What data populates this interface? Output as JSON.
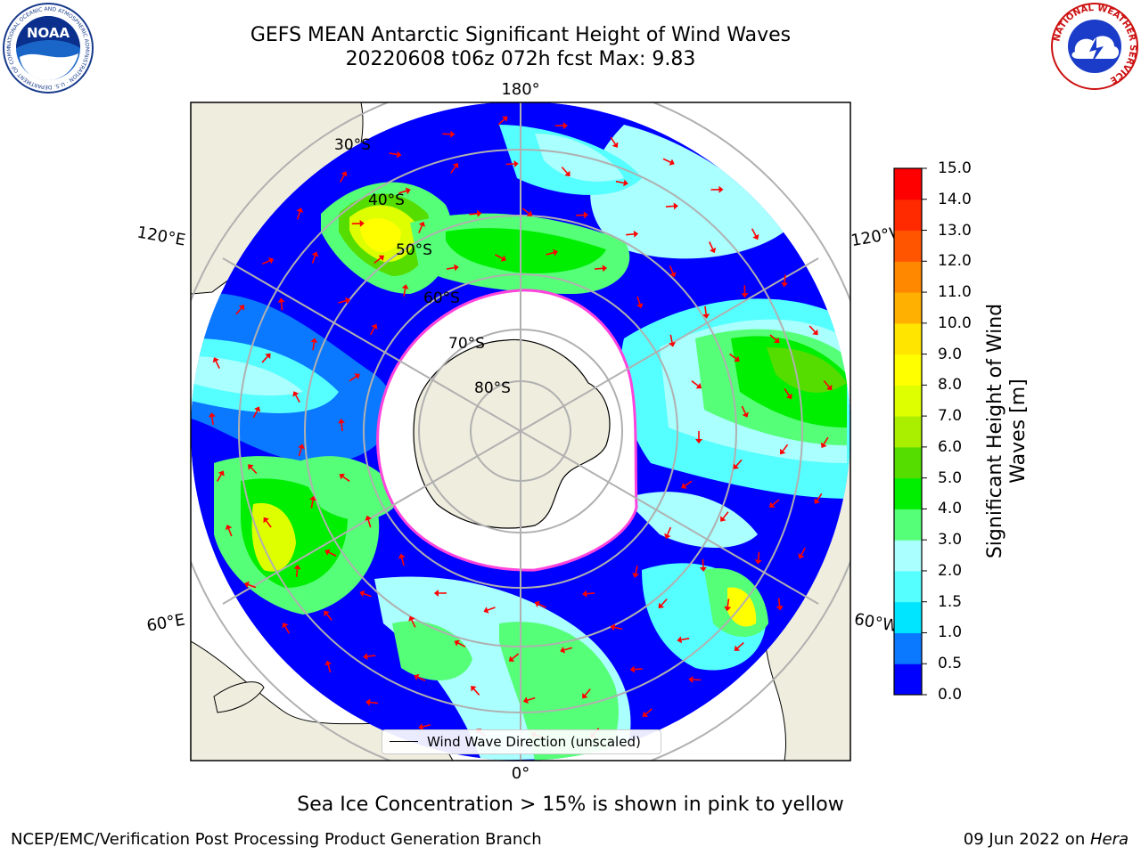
{
  "title": {
    "line1": "GEFS MEAN Antarctic Significant Height of Wind Waves",
    "line2": "20220608 t06z 072h fcst   Max: 9.83"
  },
  "logos": {
    "noaa": {
      "text": "NOAA",
      "ring_text": "NATIONAL OCEANIC AND ATMOSPHERIC ADMINISTRATION · U.S. DEPARTMENT OF COMMERCE"
    },
    "nws": {
      "ring_text": "NATIONAL WEATHER SERVICE"
    }
  },
  "map": {
    "projection": "south-polar-stereographic",
    "longitude_labels": {
      "top": "180°",
      "bottom": "0°",
      "upper_left": "120°E",
      "upper_right": "120°W",
      "lower_left": "60°E",
      "lower_right": "60°W"
    },
    "latitude_labels": [
      "30°S",
      "40°S",
      "50°S",
      "60°S",
      "70°S",
      "80°S"
    ],
    "legend": "Wind Wave Direction (unscaled)",
    "colors": {
      "land": "#efedde",
      "ice": "#ffffff",
      "ice_edge": "#ff44dd",
      "arrow": "#ff0000",
      "grid": "#b0b0b0"
    }
  },
  "colorbar": {
    "label": "Significant Height of Wind Waves [m]",
    "ticks": [
      "0.0",
      "0.5",
      "1.0",
      "1.5",
      "2.0",
      "3.0",
      "4.0",
      "5.0",
      "6.0",
      "7.0",
      "8.0",
      "9.0",
      "10.0",
      "11.0",
      "12.0",
      "13.0",
      "14.0",
      "15.0"
    ],
    "colors": [
      "#0000ff",
      "#0a78ff",
      "#00e5ff",
      "#55ffff",
      "#aaffff",
      "#55ff77",
      "#00ee00",
      "#55dd00",
      "#aaee00",
      "#ddff00",
      "#ffff00",
      "#ffe500",
      "#ffb000",
      "#ff8800",
      "#ff5500",
      "#ff2a00",
      "#ff0000"
    ]
  },
  "footer": {
    "note": "Sea Ice Concentration > 15% is shown in pink to yellow",
    "left": "NCEP/EMC/Verification Post Processing Product Generation Branch",
    "right_date": "09 Jun 2022 on ",
    "right_machine": "Hera"
  }
}
